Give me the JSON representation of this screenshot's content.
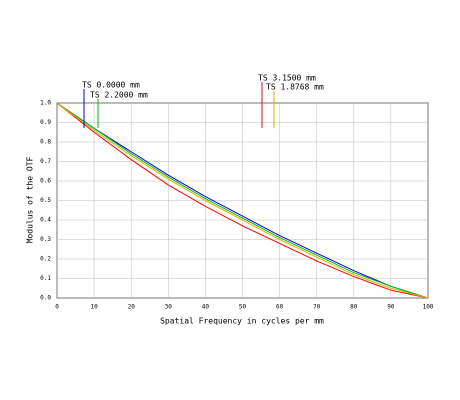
{
  "chart_data": {
    "type": "line",
    "xlabel": "Spatial Frequency in cycles per mm",
    "ylabel": "Modulus of the OTF",
    "x": [
      0,
      10,
      20,
      30,
      40,
      50,
      60,
      70,
      80,
      90,
      100
    ],
    "series": [
      {
        "name": "TS 0.0000 mm",
        "color": "#0000ff",
        "values": [
          1.0,
          0.87,
          0.75,
          0.63,
          0.52,
          0.42,
          0.32,
          0.23,
          0.14,
          0.06,
          0.0
        ]
      },
      {
        "name": "TS 2.2000 mm",
        "color": "#00c000",
        "values": [
          1.0,
          0.87,
          0.74,
          0.62,
          0.51,
          0.41,
          0.31,
          0.22,
          0.13,
          0.06,
          0.0
        ]
      },
      {
        "name": "TS 3.1500 mm",
        "color": "#ff0000",
        "values": [
          1.0,
          0.85,
          0.71,
          0.58,
          0.47,
          0.37,
          0.28,
          0.19,
          0.11,
          0.04,
          0.0
        ]
      },
      {
        "name": "TS 1.8768 mm",
        "color": "#e0b000",
        "values": [
          1.0,
          0.86,
          0.73,
          0.61,
          0.5,
          0.4,
          0.3,
          0.21,
          0.12,
          0.05,
          0.0
        ]
      }
    ],
    "xlim": [
      0,
      100
    ],
    "xticks": [
      0,
      10,
      20,
      30,
      40,
      50,
      60,
      70,
      80,
      90,
      100
    ],
    "ylim": [
      0,
      1
    ],
    "yticks": [
      {
        "value": 0,
        "label": "0.0"
      },
      {
        "value": 0.1,
        "label": "0.1"
      },
      {
        "value": 0.2,
        "label": "0.2"
      },
      {
        "value": 0.3,
        "label": "0.3"
      },
      {
        "value": 0.4,
        "label": "0.4"
      },
      {
        "value": 0.5,
        "label": "0.5"
      },
      {
        "value": 0.6,
        "label": "0.6"
      },
      {
        "value": 0.7,
        "label": "0.7"
      },
      {
        "value": 0.8,
        "label": "0.8"
      },
      {
        "value": 0.9,
        "label": "0.9"
      },
      {
        "value": 1,
        "label": "1.0"
      }
    ],
    "grid": true
  }
}
